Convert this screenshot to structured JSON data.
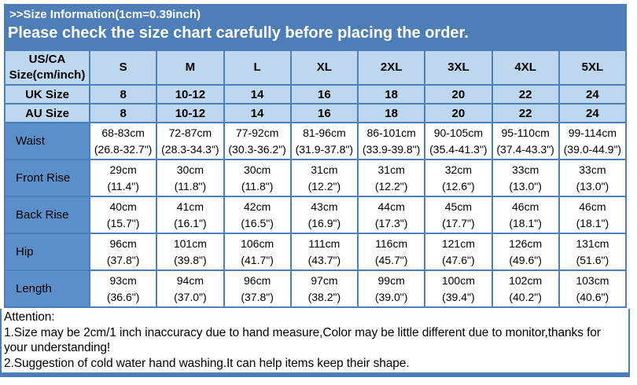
{
  "header": {
    "title": ">>Size Information(1cm=0.39inch)",
    "subtitle": "Please check the size chart carefully before placing the order."
  },
  "table": {
    "corner_label": "US/CA Size(cm/inch)",
    "size_columns": [
      "S",
      "M",
      "L",
      "XL",
      "2XL",
      "3XL",
      "4XL",
      "5XL"
    ],
    "simple_rows": [
      {
        "label": "UK Size",
        "values": [
          "8",
          "10-12",
          "14",
          "16",
          "18",
          "20",
          "22",
          "24"
        ]
      },
      {
        "label": "AU Size",
        "values": [
          "8",
          "10-12",
          "14",
          "16",
          "18",
          "20",
          "22",
          "24"
        ]
      }
    ],
    "measure_rows": [
      {
        "label": "Waist",
        "cm": [
          "68-83cm",
          "72-87cm",
          "77-92cm",
          "81-96cm",
          "86-101cm",
          "90-105cm",
          "95-110cm",
          "99-114cm"
        ],
        "inch": [
          "(26.8-32.7\")",
          "(28.3-34.3\")",
          "(30.3-36.2\")",
          "(31.9-37.8\")",
          "(33.9-39.8\")",
          "(35.4-41.3\")",
          "(37.4-43.3\")",
          "(39.0-44.9\")"
        ]
      },
      {
        "label": "Front Rise",
        "cm": [
          "29cm",
          "30cm",
          "30cm",
          "31cm",
          "31cm",
          "32cm",
          "33cm",
          "33cm"
        ],
        "inch": [
          "(11.4\")",
          "(11.8\")",
          "(11.8\")",
          "(12.2\")",
          "(12.2\")",
          "(12.6\")",
          "(13.0\")",
          "(13.0\")"
        ]
      },
      {
        "label": "Back Rise",
        "cm": [
          "40cm",
          "41cm",
          "42cm",
          "43cm",
          "44cm",
          "45cm",
          "46cm",
          "46cm"
        ],
        "inch": [
          "(15.7\")",
          "(16.1\")",
          "(16.5\")",
          "(16.9\")",
          "(17.3\")",
          "(17.7\")",
          "(18.1\")",
          "(18.1\")"
        ]
      },
      {
        "label": "Hip",
        "cm": [
          "96cm",
          "101cm",
          "106cm",
          "111cm",
          "116cm",
          "121cm",
          "126cm",
          "131cm"
        ],
        "inch": [
          "(37.8\")",
          "(39.8\")",
          "(41.7\")",
          "(43.7\")",
          "(45.7\")",
          "(47.6\")",
          "(49.6\")",
          "(51.6\")"
        ]
      },
      {
        "label": "Length",
        "cm": [
          "93cm",
          "94cm",
          "96cm",
          "97cm",
          "99cm",
          "100cm",
          "102cm",
          "103cm"
        ],
        "inch": [
          "(36.6\")",
          "(37.0\")",
          "(37.8\")",
          "(38.2\")",
          "(39.0\")",
          "(39.4\")",
          "(40.2\")",
          "(40.6\")"
        ]
      }
    ]
  },
  "attention": {
    "heading": "Attention:",
    "lines": [
      "1.Size may be 2cm/1 inch inaccuracy due to hand measure,Color may be little different due to monitor,thanks for",
      "your understanding!",
      "2.Suggestion of cold water hand washing.It can help items keep their shape."
    ]
  },
  "colors": {
    "banner_blue": "#4d7eb8",
    "row_label_blue": "#5a8fc9",
    "header_cell_blue": "#bdd7ee",
    "border_blue": "#4a7ebd",
    "text_on_blue": "#ffffff",
    "text_black": "#000000"
  }
}
